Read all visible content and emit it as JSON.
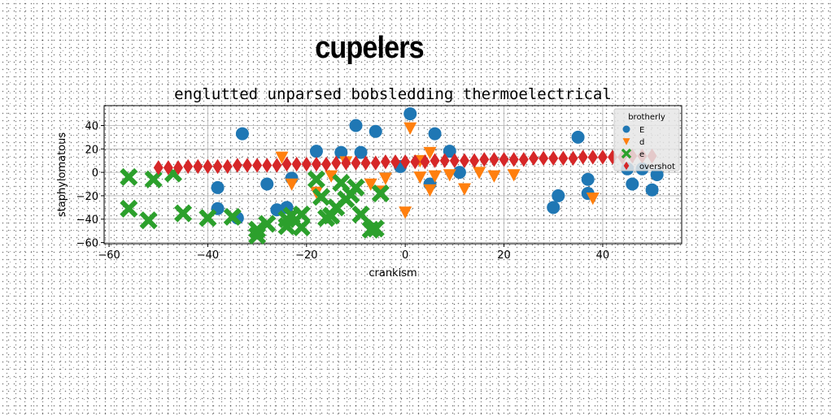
{
  "page": {
    "title": "cupelers"
  },
  "chart_data": {
    "type": "scatter",
    "title": "englutted unparsed bobsledding thermoelectrical",
    "xlabel": "crankism",
    "ylabel": "staphylomatous",
    "xlim": [
      -61,
      56
    ],
    "ylim": [
      -61,
      57
    ],
    "xticks": [
      -60,
      -40,
      -20,
      0,
      20,
      40
    ],
    "yticks": [
      -60,
      -40,
      -20,
      0,
      20,
      40
    ],
    "grid": true,
    "legend": {
      "title": "brotherly",
      "placement": "top-right"
    },
    "series": [
      {
        "name": "E",
        "marker": "circle",
        "color": "#1f77b4",
        "points": [
          [
            -38,
            -13
          ],
          [
            -38,
            -31
          ],
          [
            -33,
            33
          ],
          [
            -34,
            -39
          ],
          [
            -28,
            -10
          ],
          [
            -26,
            -32
          ],
          [
            -24,
            -30
          ],
          [
            -23,
            -5
          ],
          [
            -18,
            18
          ],
          [
            -13,
            17
          ],
          [
            -10,
            40
          ],
          [
            -9,
            17
          ],
          [
            -6,
            35
          ],
          [
            -1,
            5
          ],
          [
            1,
            50
          ],
          [
            6,
            33
          ],
          [
            5,
            -10
          ],
          [
            9,
            18
          ],
          [
            11,
            0
          ],
          [
            30,
            -30
          ],
          [
            31,
            -20
          ],
          [
            35,
            30
          ],
          [
            37,
            -6
          ],
          [
            37,
            -18
          ],
          [
            45,
            3
          ],
          [
            46,
            -10
          ],
          [
            48,
            3
          ],
          [
            50,
            -15
          ],
          [
            51,
            -2
          ]
        ]
      },
      {
        "name": "d",
        "marker": "triangle-down",
        "color": "#ff7f0e",
        "points": [
          [
            -25,
            13
          ],
          [
            -23,
            -10
          ],
          [
            -18,
            -17
          ],
          [
            -15,
            -3
          ],
          [
            -12,
            9
          ],
          [
            -7,
            -10
          ],
          [
            -5,
            -16
          ],
          [
            -4,
            -5
          ],
          [
            0,
            -34
          ],
          [
            1,
            38
          ],
          [
            3,
            10
          ],
          [
            3,
            -4
          ],
          [
            5,
            -15
          ],
          [
            5,
            17
          ],
          [
            6,
            -3
          ],
          [
            9,
            -2
          ],
          [
            12,
            -14
          ],
          [
            15,
            0
          ],
          [
            18,
            -3
          ],
          [
            22,
            -2
          ],
          [
            38,
            -22
          ]
        ]
      },
      {
        "name": "e",
        "marker": "x",
        "color": "#2ca02c",
        "points": [
          [
            -56,
            -4
          ],
          [
            -56,
            -31
          ],
          [
            -51,
            -6
          ],
          [
            -52,
            -41
          ],
          [
            -47,
            -1
          ],
          [
            -45,
            -35
          ],
          [
            -40,
            -39
          ],
          [
            -35,
            -38
          ],
          [
            -30,
            -49
          ],
          [
            -30,
            -54
          ],
          [
            -28,
            -44
          ],
          [
            -24,
            -40
          ],
          [
            -24,
            -46
          ],
          [
            -23,
            -37
          ],
          [
            -21,
            -36
          ],
          [
            -21,
            -47
          ],
          [
            -18,
            -6
          ],
          [
            -17,
            -21
          ],
          [
            -16,
            -39
          ],
          [
            -15,
            -37
          ],
          [
            -14,
            -30
          ],
          [
            -13,
            -9
          ],
          [
            -12,
            -23
          ],
          [
            -11,
            -19
          ],
          [
            -10,
            -13
          ],
          [
            -9,
            -36
          ],
          [
            -7,
            -49
          ],
          [
            -6,
            -48
          ],
          [
            -5,
            -18
          ]
        ]
      },
      {
        "name": "overshot",
        "marker": "diamond",
        "color": "#d62728",
        "points": [
          [
            -50,
            4
          ],
          [
            -48,
            4
          ],
          [
            -46,
            4
          ],
          [
            -44,
            5
          ],
          [
            -42,
            5
          ],
          [
            -40,
            5
          ],
          [
            -38,
            5
          ],
          [
            -36,
            5
          ],
          [
            -34,
            6
          ],
          [
            -32,
            6
          ],
          [
            -30,
            6
          ],
          [
            -28,
            6
          ],
          [
            -26,
            6
          ],
          [
            -24,
            7
          ],
          [
            -22,
            7
          ],
          [
            -20,
            7
          ],
          [
            -18,
            7
          ],
          [
            -16,
            7
          ],
          [
            -14,
            8
          ],
          [
            -12,
            8
          ],
          [
            -10,
            8
          ],
          [
            -8,
            8
          ],
          [
            -6,
            8
          ],
          [
            -4,
            9
          ],
          [
            -2,
            9
          ],
          [
            0,
            9
          ],
          [
            2,
            9
          ],
          [
            4,
            9
          ],
          [
            6,
            10
          ],
          [
            8,
            10
          ],
          [
            10,
            10
          ],
          [
            12,
            10
          ],
          [
            14,
            10
          ],
          [
            16,
            11
          ],
          [
            18,
            11
          ],
          [
            20,
            11
          ],
          [
            22,
            11
          ],
          [
            24,
            11
          ],
          [
            26,
            12
          ],
          [
            28,
            12
          ],
          [
            30,
            12
          ],
          [
            32,
            12
          ],
          [
            34,
            12
          ],
          [
            36,
            13
          ],
          [
            38,
            13
          ],
          [
            40,
            13
          ],
          [
            42,
            13
          ],
          [
            44,
            13
          ],
          [
            46,
            14
          ],
          [
            48,
            14
          ],
          [
            50,
            14
          ]
        ]
      }
    ]
  }
}
